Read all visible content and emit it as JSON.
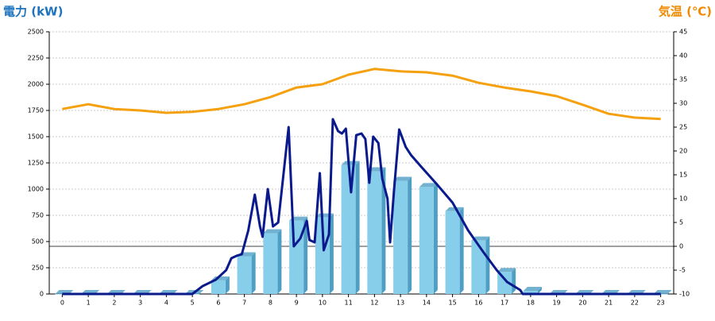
{
  "chart_data": {
    "type": "bar-line",
    "y_label": "電力 (kW)",
    "y2_label": "気温 (℃)",
    "categories": [
      "0",
      "1",
      "2",
      "3",
      "4",
      "5",
      "6",
      "7",
      "8",
      "9",
      "10",
      "11",
      "12",
      "13",
      "14",
      "15",
      "16",
      "17",
      "18",
      "19",
      "20",
      "21",
      "22",
      "23"
    ],
    "ylim": [
      0,
      2500
    ],
    "yticks": [
      0,
      250,
      500,
      750,
      1000,
      1250,
      1500,
      1750,
      2000,
      2250,
      2500
    ],
    "y2lim": [
      -10,
      45
    ],
    "y2ticks": [
      -10,
      -5,
      0,
      5,
      10,
      15,
      20,
      25,
      30,
      35,
      40,
      45
    ],
    "grid": true,
    "y2_zero_line": true,
    "series": [
      {
        "type": "bar",
        "color": "#87ceeb",
        "side_color": "#4f9fc4",
        "values": [
          0,
          0,
          0,
          0,
          0,
          0,
          130,
          360,
          580,
          700,
          730,
          1230,
          1170,
          1080,
          1020,
          790,
          510,
          210,
          30,
          0,
          0,
          0,
          0,
          0
        ]
      },
      {
        "type": "line",
        "color": "#0a1a8c",
        "x": [
          0,
          5,
          5.4,
          5.9,
          6.3,
          6.5,
          6.7,
          6.9,
          7.15,
          7.4,
          7.6,
          7.7,
          7.9,
          8.1,
          8.3,
          8.5,
          8.7,
          8.9,
          9.15,
          9.4,
          9.5,
          9.7,
          9.9,
          10.05,
          10.25,
          10.4,
          10.6,
          10.75,
          10.9,
          11.1,
          11.3,
          11.5,
          11.65,
          11.8,
          11.95,
          12.15,
          12.3,
          12.5,
          12.6,
          12.75,
          12.95,
          13.2,
          13.4,
          13.8,
          14.4,
          15,
          15.6,
          16.2,
          16.7,
          17.1,
          17.6,
          17.7,
          23
        ],
        "values": [
          0,
          0,
          76,
          136,
          227,
          341,
          364,
          379,
          606,
          947,
          644,
          545,
          1000,
          644,
          682,
          1136,
          1591,
          455,
          530,
          697,
          515,
          492,
          1152,
          417,
          568,
          1667,
          1553,
          1530,
          1576,
          970,
          1515,
          1530,
          1477,
          1061,
          1500,
          1439,
          1098,
          909,
          492,
          985,
          1568,
          1402,
          1326,
          1212,
          1045,
          871,
          606,
          394,
          227,
          114,
          38,
          0,
          0
        ]
      },
      {
        "type": "line",
        "axis": "y2",
        "color": "#f5a00f",
        "values": [
          28.8,
          29.8,
          28.8,
          28.5,
          28,
          28.2,
          28.8,
          29.8,
          31.3,
          33.3,
          34,
          36,
          37.2,
          36.7,
          36.5,
          35.8,
          34.3,
          33.3,
          32.5,
          31.5,
          29.7,
          27.8,
          27,
          26.7
        ]
      }
    ]
  }
}
